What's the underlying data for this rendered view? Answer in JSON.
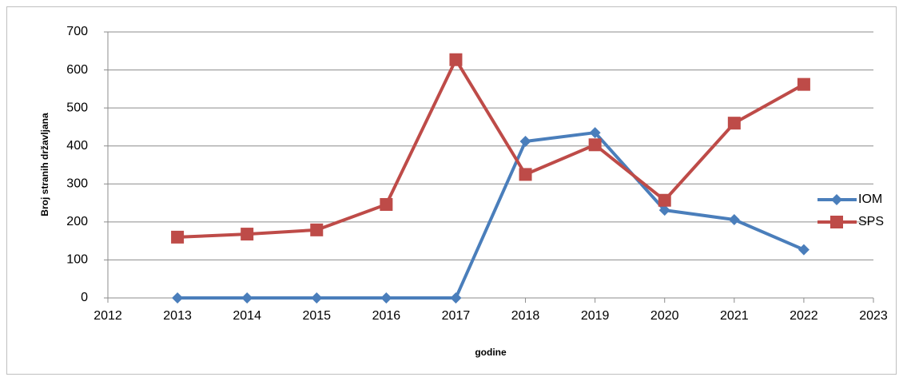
{
  "chart_data": {
    "type": "line",
    "x_label": "godine",
    "y_label": "Broj stranih državljana",
    "x": [
      2013,
      2014,
      2015,
      2016,
      2017,
      2018,
      2019,
      2020,
      2021,
      2022
    ],
    "series": [
      {
        "name": "IOM",
        "color": "#4a7ebb",
        "marker": "diamond",
        "values": [
          0,
          0,
          0,
          0,
          0,
          412,
          435,
          231,
          206,
          127
        ]
      },
      {
        "name": "SPS",
        "color": "#be4b48",
        "marker": "square",
        "values": [
          160,
          168,
          179,
          246,
          627,
          325,
          403,
          257,
          460,
          562
        ]
      }
    ],
    "xlim": [
      2012,
      2023
    ],
    "xticks": [
      2012,
      2013,
      2014,
      2015,
      2016,
      2017,
      2018,
      2019,
      2020,
      2021,
      2022,
      2023
    ],
    "ylim": [
      0,
      700
    ],
    "yticks": [
      0,
      100,
      200,
      300,
      400,
      500,
      600,
      700
    ],
    "grid": true,
    "legend": "right"
  }
}
